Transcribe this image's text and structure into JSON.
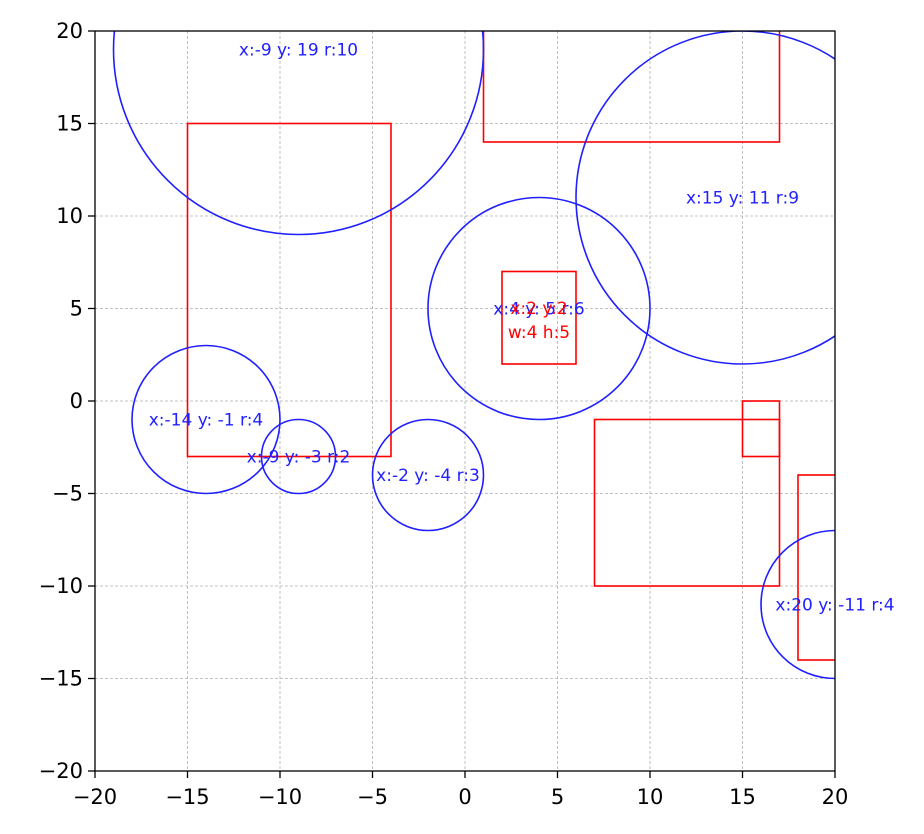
{
  "chart_data": {
    "type": "scatter",
    "title": "",
    "xlabel": "",
    "ylabel": "",
    "xlim": [
      -20,
      20
    ],
    "ylim": [
      -20,
      20
    ],
    "grid": true,
    "xticks": [
      -20,
      -15,
      -10,
      -5,
      0,
      5,
      10,
      15,
      20
    ],
    "yticks": [
      -20,
      -15,
      -10,
      -5,
      0,
      5,
      10,
      15,
      20
    ],
    "circle_color": "#1f1fff",
    "rect_color": "#ff0000",
    "circles": [
      {
        "x": -9,
        "y": 19,
        "r": 10,
        "label": "x:-9 y: 19 r:10"
      },
      {
        "x": 15,
        "y": 11,
        "r": 9,
        "label": "x:15 y: 11 r:9"
      },
      {
        "x": 4,
        "y": 5,
        "r": 6,
        "label": "x:4 y: 5 r:6"
      },
      {
        "x": -14,
        "y": -1,
        "r": 4,
        "label": "x:-14 y: -1 r:4"
      },
      {
        "x": -9,
        "y": -3,
        "r": 2,
        "label": "x:-9 y: -3 r:2"
      },
      {
        "x": -2,
        "y": -4,
        "r": 3,
        "label": "x:-2 y: -4 r:3"
      },
      {
        "x": 20,
        "y": -11,
        "r": 4,
        "label": "x:20 y: -11 r:4"
      }
    ],
    "rectangles": [
      {
        "x": -15,
        "y": -3,
        "w": 11,
        "h": 18
      },
      {
        "x": 1,
        "y": 14,
        "w": 16,
        "h": 7
      },
      {
        "x": 2,
        "y": 2,
        "w": 4,
        "h": 5,
        "label_lines": [
          "x:2 y:2",
          "w:4 h:5"
        ]
      },
      {
        "x": 7,
        "y": -10,
        "w": 10,
        "h": 9
      },
      {
        "x": 15,
        "y": -3,
        "w": 2,
        "h": 3
      },
      {
        "x": 18,
        "y": -14,
        "w": 4,
        "h": 10
      }
    ]
  }
}
